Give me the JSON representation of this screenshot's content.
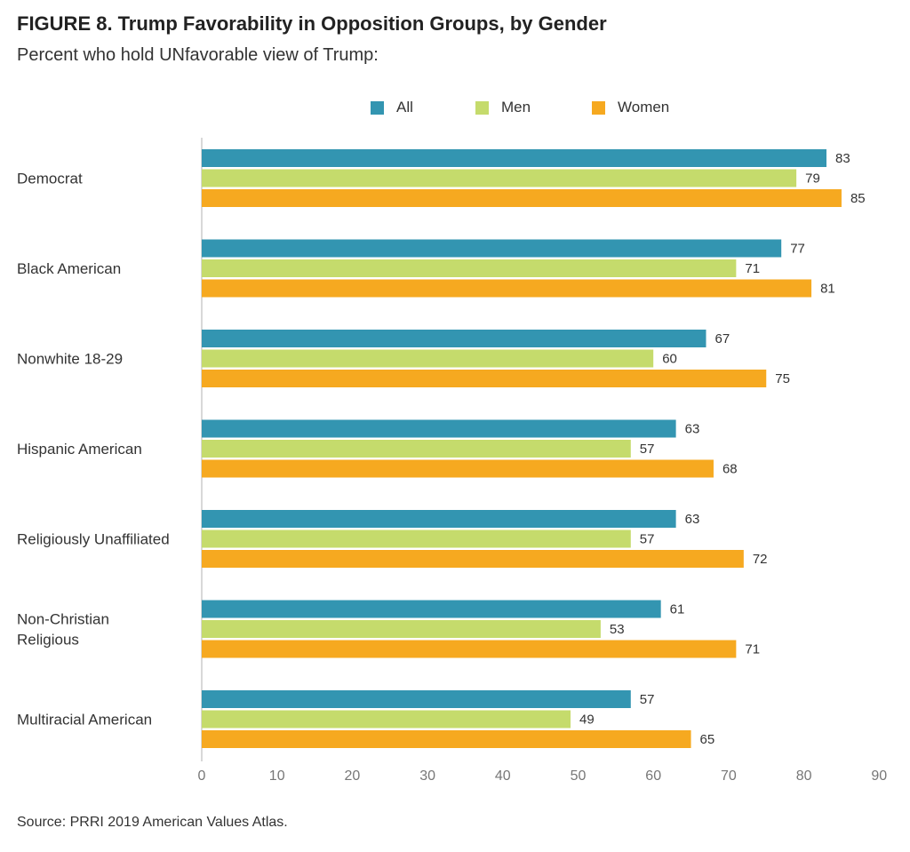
{
  "figure_number": "FIGURE 8.",
  "title": "Trump Favorability in Opposition Groups, by Gender",
  "subtitle": "Percent who hold UNfavorable view of Trump:",
  "source": "Source: PRRI 2019 American Values Atlas.",
  "colors": {
    "All": "#3395b1",
    "Men": "#c5db6c",
    "Women": "#f6a920",
    "axis": "#cccccc"
  },
  "chart_data": {
    "type": "bar",
    "orientation": "horizontal",
    "categories": [
      [
        "Democrat"
      ],
      [
        "Black American"
      ],
      [
        "Nonwhite 18-29"
      ],
      [
        "Hispanic American"
      ],
      [
        "Religiously Unaffiliated"
      ],
      [
        "Non-Christian",
        "Religious"
      ],
      [
        "Multiracial American"
      ]
    ],
    "series": [
      {
        "name": "All",
        "values": [
          83,
          77,
          67,
          63,
          63,
          61,
          57
        ]
      },
      {
        "name": "Men",
        "values": [
          79,
          71,
          60,
          57,
          57,
          53,
          49
        ]
      },
      {
        "name": "Women",
        "values": [
          85,
          81,
          75,
          68,
          72,
          71,
          65
        ]
      }
    ],
    "xlim": [
      0,
      90
    ],
    "xticks": [
      0,
      10,
      20,
      30,
      40,
      50,
      60,
      70,
      80,
      90
    ],
    "legend_position": "top-center",
    "grid": false
  }
}
